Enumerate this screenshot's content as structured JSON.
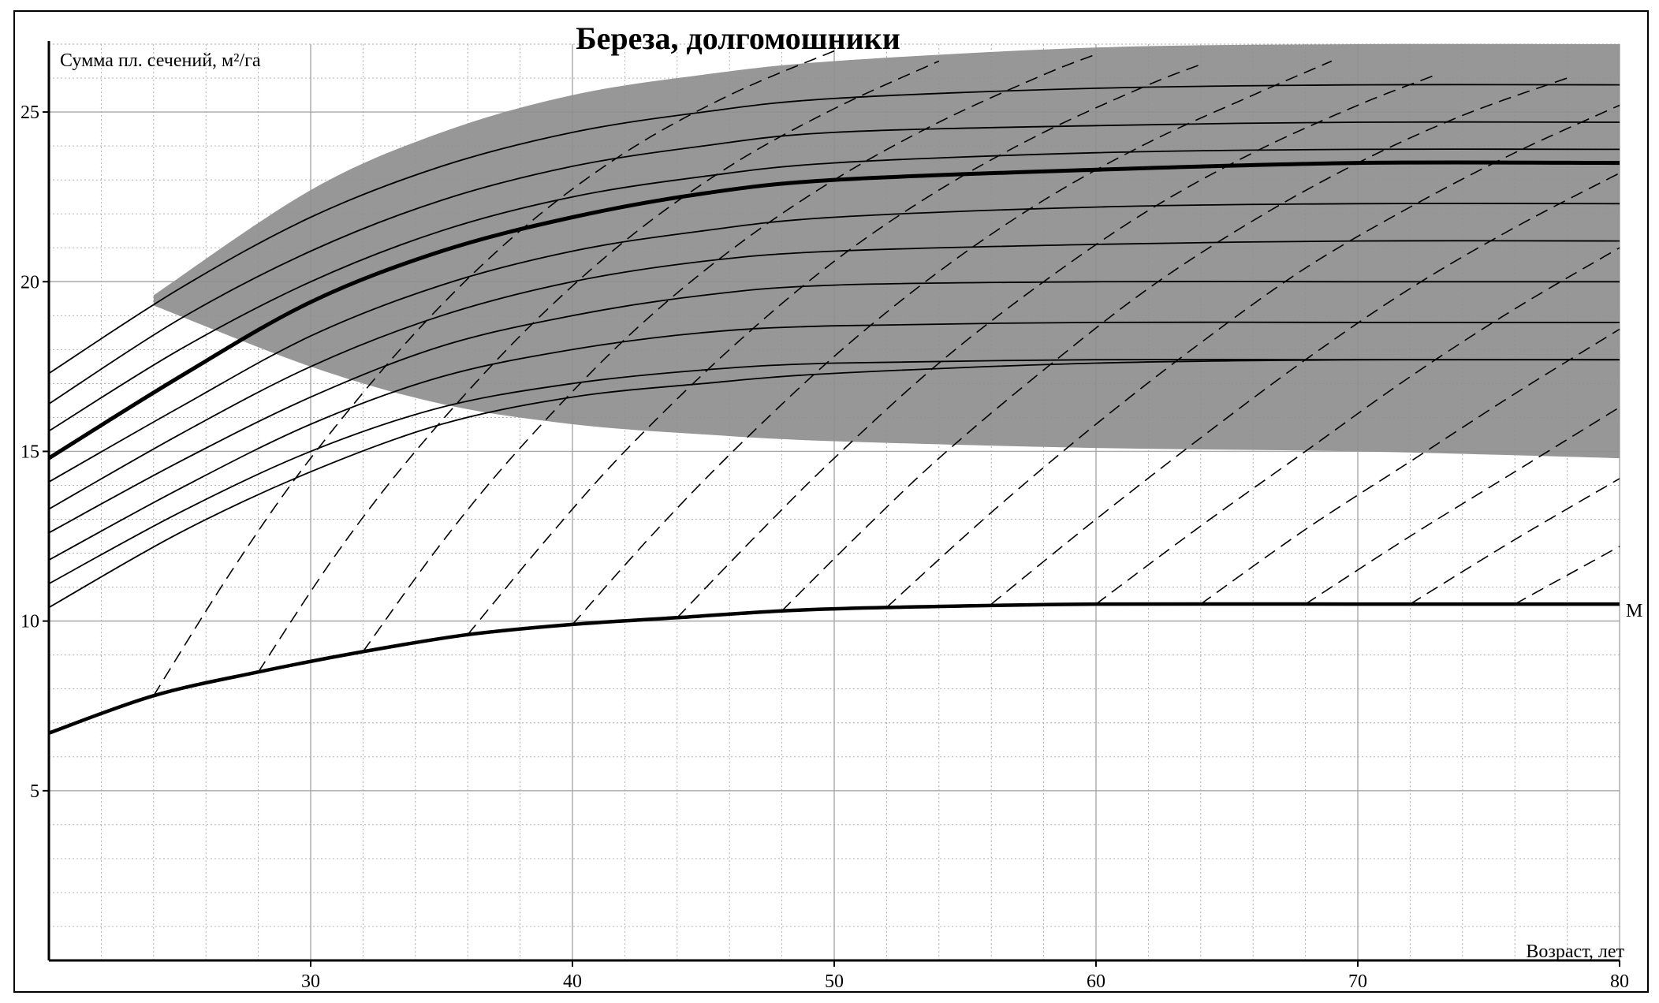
{
  "chart_data": {
    "type": "line",
    "title": "Береза, долгомошники",
    "xlabel": "Возраст, лет",
    "ylabel": "Сумма пл. сечений, м²/га",
    "xlim": [
      20,
      80
    ],
    "ylim": [
      0,
      27
    ],
    "x_ticks": [
      "30",
      "40",
      "50",
      "60",
      "70",
      "80"
    ],
    "y_ticks": [
      "5",
      "10",
      "15",
      "20",
      "25"
    ],
    "grid": true,
    "colors": {
      "band_fill": "#8e8e8e",
      "line": "#000000",
      "grid": "#a8a8a8",
      "background": "#ffffff"
    },
    "shaded_band": {
      "upper": [
        [
          24,
          19.6
        ],
        [
          30,
          22.7
        ],
        [
          35,
          24.4
        ],
        [
          40,
          25.5
        ],
        [
          45,
          26.1
        ],
        [
          50,
          26.5
        ],
        [
          60,
          26.9
        ],
        [
          70,
          27.0
        ],
        [
          80,
          27.0
        ]
      ],
      "lower": [
        [
          24,
          19.3
        ],
        [
          30,
          17.5
        ],
        [
          35,
          16.4
        ],
        [
          40,
          15.8
        ],
        [
          45,
          15.5
        ],
        [
          50,
          15.3
        ],
        [
          60,
          15.1
        ],
        [
          70,
          15.0
        ],
        [
          80,
          14.8
        ]
      ]
    },
    "growth_curves": [
      {
        "bold": false,
        "points": [
          [
            20,
            17.3
          ],
          [
            25,
            19.8
          ],
          [
            30,
            21.9
          ],
          [
            35,
            23.4
          ],
          [
            40,
            24.4
          ],
          [
            45,
            25.0
          ],
          [
            50,
            25.4
          ],
          [
            60,
            25.7
          ],
          [
            70,
            25.8
          ],
          [
            80,
            25.8
          ]
        ]
      },
      {
        "bold": false,
        "points": [
          [
            20,
            16.4
          ],
          [
            25,
            18.9
          ],
          [
            30,
            20.9
          ],
          [
            35,
            22.4
          ],
          [
            40,
            23.4
          ],
          [
            45,
            24.0
          ],
          [
            50,
            24.4
          ],
          [
            60,
            24.6
          ],
          [
            70,
            24.7
          ],
          [
            80,
            24.7
          ]
        ]
      },
      {
        "bold": false,
        "points": [
          [
            20,
            15.6
          ],
          [
            25,
            18.0
          ],
          [
            30,
            20.0
          ],
          [
            35,
            21.5
          ],
          [
            40,
            22.5
          ],
          [
            45,
            23.1
          ],
          [
            50,
            23.5
          ],
          [
            60,
            23.8
          ],
          [
            70,
            23.9
          ],
          [
            80,
            23.9
          ]
        ]
      },
      {
        "bold": true,
        "points": [
          [
            20,
            14.8
          ],
          [
            25,
            17.2
          ],
          [
            30,
            19.4
          ],
          [
            35,
            20.9
          ],
          [
            40,
            21.9
          ],
          [
            45,
            22.6
          ],
          [
            50,
            23.0
          ],
          [
            60,
            23.3
          ],
          [
            70,
            23.5
          ],
          [
            80,
            23.5
          ]
        ]
      },
      {
        "bold": false,
        "points": [
          [
            20,
            14.1
          ],
          [
            25,
            16.3
          ],
          [
            30,
            18.4
          ],
          [
            35,
            19.9
          ],
          [
            40,
            20.9
          ],
          [
            45,
            21.5
          ],
          [
            50,
            21.9
          ],
          [
            60,
            22.2
          ],
          [
            70,
            22.3
          ],
          [
            80,
            22.3
          ]
        ]
      },
      {
        "bold": false,
        "points": [
          [
            20,
            13.3
          ],
          [
            25,
            15.5
          ],
          [
            30,
            17.5
          ],
          [
            35,
            19.0
          ],
          [
            40,
            20.0
          ],
          [
            45,
            20.6
          ],
          [
            50,
            20.9
          ],
          [
            60,
            21.1
          ],
          [
            70,
            21.2
          ],
          [
            80,
            21.2
          ]
        ]
      },
      {
        "bold": false,
        "points": [
          [
            20,
            12.6
          ],
          [
            25,
            14.7
          ],
          [
            30,
            16.6
          ],
          [
            35,
            18.1
          ],
          [
            40,
            19.0
          ],
          [
            45,
            19.6
          ],
          [
            50,
            19.9
          ],
          [
            60,
            20.0
          ],
          [
            70,
            20.0
          ],
          [
            80,
            20.0
          ]
        ]
      },
      {
        "bold": false,
        "points": [
          [
            20,
            11.8
          ],
          [
            25,
            13.9
          ],
          [
            30,
            15.8
          ],
          [
            35,
            17.2
          ],
          [
            40,
            18.0
          ],
          [
            45,
            18.5
          ],
          [
            50,
            18.7
          ],
          [
            60,
            18.8
          ],
          [
            70,
            18.8
          ],
          [
            80,
            18.8
          ]
        ]
      },
      {
        "bold": false,
        "points": [
          [
            20,
            11.1
          ],
          [
            25,
            13.2
          ],
          [
            30,
            15.0
          ],
          [
            35,
            16.3
          ],
          [
            40,
            17.0
          ],
          [
            45,
            17.4
          ],
          [
            50,
            17.6
          ],
          [
            60,
            17.7
          ],
          [
            70,
            17.7
          ],
          [
            80,
            17.7
          ]
        ]
      },
      {
        "bold": false,
        "points": [
          [
            20,
            10.4
          ],
          [
            25,
            12.6
          ],
          [
            30,
            14.4
          ],
          [
            35,
            15.8
          ],
          [
            40,
            16.6
          ],
          [
            45,
            17.0
          ],
          [
            50,
            17.3
          ],
          [
            60,
            17.6
          ],
          [
            70,
            17.7
          ],
          [
            80,
            17.7
          ]
        ]
      }
    ],
    "minimum_curve": {
      "label": "M",
      "points": [
        [
          20,
          6.7
        ],
        [
          24,
          7.8
        ],
        [
          28,
          8.5
        ],
        [
          32,
          9.1
        ],
        [
          36,
          9.6
        ],
        [
          40,
          9.9
        ],
        [
          44,
          10.1
        ],
        [
          48,
          10.3
        ],
        [
          52,
          10.4
        ],
        [
          60,
          10.5
        ],
        [
          70,
          10.5
        ],
        [
          80,
          10.5
        ]
      ]
    },
    "dashed_lines": [
      {
        "points": [
          [
            24,
            7.8
          ],
          [
            27,
            11.5
          ],
          [
            30,
            14.8
          ],
          [
            34,
            18.5
          ],
          [
            38,
            21.5
          ],
          [
            42,
            23.8
          ],
          [
            46,
            25.5
          ],
          [
            50,
            26.8
          ]
        ]
      },
      {
        "points": [
          [
            28,
            8.5
          ],
          [
            31,
            12.0
          ],
          [
            34,
            15.0
          ],
          [
            38,
            18.4
          ],
          [
            42,
            21.2
          ],
          [
            46,
            23.4
          ],
          [
            50,
            25.1
          ],
          [
            54,
            26.5
          ]
        ]
      },
      {
        "points": [
          [
            32,
            9.1
          ],
          [
            35,
            12.3
          ],
          [
            38,
            15.1
          ],
          [
            42,
            18.3
          ],
          [
            46,
            20.9
          ],
          [
            50,
            23.0
          ],
          [
            54,
            24.7
          ],
          [
            58,
            26.1
          ],
          [
            60,
            26.7
          ]
        ]
      },
      {
        "points": [
          [
            36,
            9.6
          ],
          [
            39,
            12.4
          ],
          [
            42,
            15.0
          ],
          [
            46,
            18.0
          ],
          [
            50,
            20.6
          ],
          [
            54,
            22.7
          ],
          [
            58,
            24.4
          ],
          [
            62,
            25.8
          ],
          [
            64,
            26.4
          ]
        ]
      },
      {
        "points": [
          [
            40,
            9.9
          ],
          [
            43,
            12.5
          ],
          [
            46,
            14.9
          ],
          [
            50,
            17.8
          ],
          [
            54,
            20.3
          ],
          [
            58,
            22.4
          ],
          [
            62,
            24.1
          ],
          [
            66,
            25.5
          ],
          [
            69,
            26.5
          ]
        ]
      },
      {
        "points": [
          [
            44,
            10.1
          ],
          [
            47,
            12.5
          ],
          [
            50,
            14.8
          ],
          [
            54,
            17.6
          ],
          [
            58,
            20.0
          ],
          [
            62,
            22.1
          ],
          [
            66,
            23.8
          ],
          [
            70,
            25.2
          ],
          [
            73,
            26.1
          ]
        ]
      },
      {
        "points": [
          [
            48,
            10.3
          ],
          [
            51,
            12.6
          ],
          [
            54,
            14.8
          ],
          [
            58,
            17.4
          ],
          [
            62,
            19.8
          ],
          [
            66,
            21.8
          ],
          [
            70,
            23.5
          ],
          [
            74,
            24.9
          ],
          [
            78,
            26.0
          ]
        ]
      },
      {
        "points": [
          [
            52,
            10.4
          ],
          [
            56,
            13.2
          ],
          [
            60,
            15.8
          ],
          [
            64,
            18.2
          ],
          [
            68,
            20.4
          ],
          [
            72,
            22.2
          ],
          [
            76,
            23.8
          ],
          [
            80,
            25.2
          ]
        ]
      },
      {
        "points": [
          [
            56,
            10.5
          ],
          [
            60,
            13.0
          ],
          [
            64,
            15.4
          ],
          [
            68,
            17.7
          ],
          [
            72,
            19.8
          ],
          [
            76,
            21.6
          ],
          [
            80,
            23.2
          ]
        ]
      },
      {
        "points": [
          [
            60,
            10.5
          ],
          [
            64,
            12.8
          ],
          [
            68,
            15.0
          ],
          [
            72,
            17.2
          ],
          [
            76,
            19.2
          ],
          [
            80,
            21.0
          ]
        ]
      },
      {
        "points": [
          [
            64,
            10.5
          ],
          [
            68,
            12.7
          ],
          [
            72,
            14.7
          ],
          [
            76,
            16.7
          ],
          [
            80,
            18.6
          ]
        ]
      },
      {
        "points": [
          [
            68,
            10.5
          ],
          [
            72,
            12.5
          ],
          [
            76,
            14.4
          ],
          [
            80,
            16.3
          ]
        ]
      },
      {
        "points": [
          [
            72,
            10.5
          ],
          [
            76,
            12.4
          ],
          [
            80,
            14.2
          ]
        ]
      },
      {
        "points": [
          [
            76,
            10.5
          ],
          [
            80,
            12.2
          ]
        ]
      }
    ]
  }
}
